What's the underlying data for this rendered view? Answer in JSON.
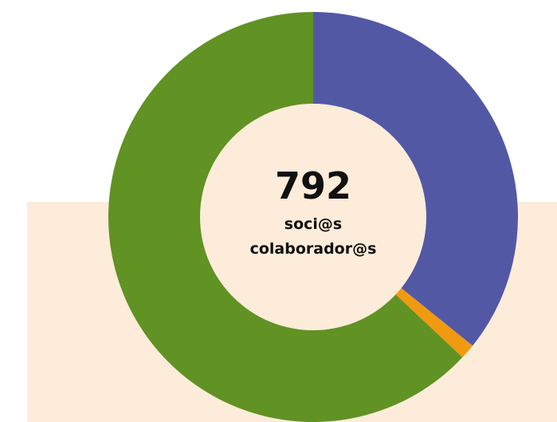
{
  "colors": {
    "panel_background": "#fcecd9",
    "center_fill": "#fcecd9"
  },
  "chart_data": {
    "type": "pie",
    "style": "donut",
    "center": {
      "value": "792",
      "label_line1": "soci@s",
      "label_line2": "colaborador@s"
    },
    "slices": [
      {
        "value": 35.8,
        "color": "#5358a5"
      },
      {
        "value": 1.2,
        "color": "#f09a10"
      },
      {
        "value": 63.0,
        "color": "#619224"
      }
    ],
    "legend": false,
    "grid": false
  }
}
